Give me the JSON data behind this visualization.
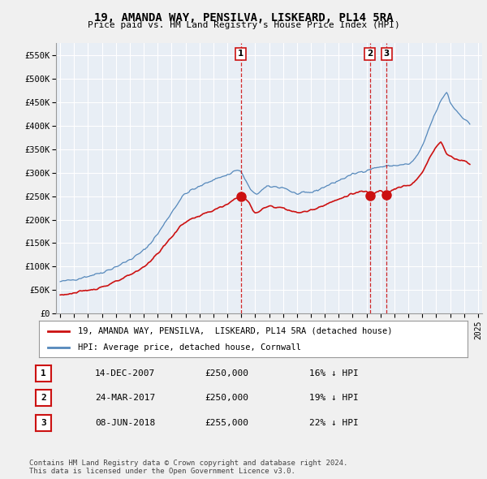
{
  "title": "19, AMANDA WAY, PENSILVA, LISKEARD, PL14 5RA",
  "subtitle": "Price paid vs. HM Land Registry's House Price Index (HPI)",
  "ylim": [
    0,
    575000
  ],
  "yticks": [
    0,
    50000,
    100000,
    150000,
    200000,
    250000,
    300000,
    350000,
    400000,
    450000,
    500000,
    550000
  ],
  "ytick_labels": [
    "£0",
    "£50K",
    "£100K",
    "£150K",
    "£200K",
    "£250K",
    "£300K",
    "£350K",
    "£400K",
    "£450K",
    "£500K",
    "£550K"
  ],
  "xlim_start": 1994.7,
  "xlim_end": 2025.3,
  "background_color": "#f0f0f0",
  "plot_bg_color": "#e8eef5",
  "grid_color": "#ffffff",
  "hpi_color": "#5588bb",
  "price_color": "#cc1111",
  "legend_label_price": "19, AMANDA WAY, PENSILVA,  LISKEARD, PL14 5RA (detached house)",
  "legend_label_hpi": "HPI: Average price, detached house, Cornwall",
  "transactions": [
    {
      "num": 1,
      "date": "14-DEC-2007",
      "price": 250000,
      "pct": "16% ↓ HPI",
      "year": 2007.96
    },
    {
      "num": 2,
      "date": "24-MAR-2017",
      "price": 250000,
      "pct": "19% ↓ HPI",
      "year": 2017.23
    },
    {
      "num": 3,
      "date": "08-JUN-2018",
      "price": 255000,
      "pct": "22% ↓ HPI",
      "year": 2018.44
    }
  ],
  "footer": "Contains HM Land Registry data © Crown copyright and database right 2024.\nThis data is licensed under the Open Government Licence v3.0."
}
